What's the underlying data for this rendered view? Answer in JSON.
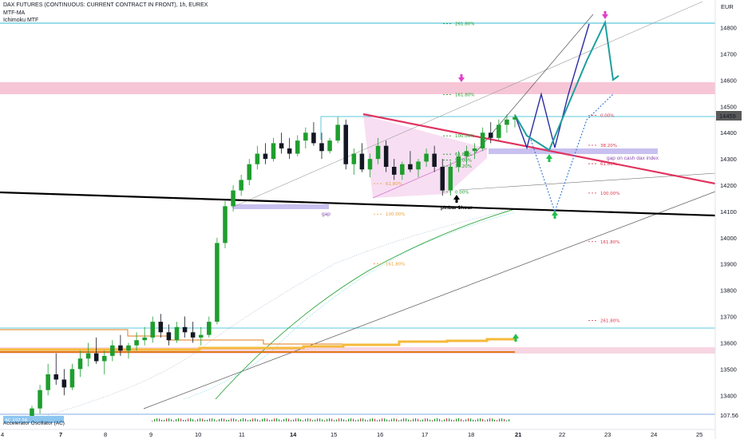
{
  "header": {
    "title": "DAX FUTURES (CONTINUOUS: CURRENT CONTRACT IN FRONT), 1h, EUREX",
    "indicator1": "MTF-MA",
    "indicator2": "Ichimoku MTF"
  },
  "chart_data": {
    "type": "candlestick",
    "currency": "EUR",
    "current_price": "14459",
    "ylim": [
      13340,
      14890
    ],
    "y_ticks": [
      "14800",
      "14700",
      "14600",
      "14500",
      "14400",
      "14300",
      "14200",
      "14100",
      "14000",
      "13900",
      "13800",
      "13700",
      "13600",
      "13500",
      "13400"
    ],
    "x_ticks": [
      "4",
      "7",
      "8",
      "9",
      "10",
      "11",
      "14",
      "15",
      "16",
      "17",
      "18",
      "21",
      "22",
      "23",
      "24",
      "25"
    ],
    "candles": [
      {
        "o": 13320,
        "h": 13360,
        "l": 13300,
        "c": 13350
      },
      {
        "o": 13350,
        "h": 13440,
        "l": 13330,
        "c": 13420
      },
      {
        "o": 13420,
        "h": 13520,
        "l": 13400,
        "c": 13480
      },
      {
        "o": 13480,
        "h": 13560,
        "l": 13440,
        "c": 13460
      },
      {
        "o": 13460,
        "h": 13500,
        "l": 13400,
        "c": 13430
      },
      {
        "o": 13430,
        "h": 13520,
        "l": 13420,
        "c": 13500
      },
      {
        "o": 13500,
        "h": 13570,
        "l": 13470,
        "c": 13540
      },
      {
        "o": 13540,
        "h": 13600,
        "l": 13510,
        "c": 13560
      },
      {
        "o": 13560,
        "h": 13620,
        "l": 13520,
        "c": 13530
      },
      {
        "o": 13530,
        "h": 13570,
        "l": 13480,
        "c": 13550
      },
      {
        "o": 13550,
        "h": 13610,
        "l": 13530,
        "c": 13590
      },
      {
        "o": 13590,
        "h": 13630,
        "l": 13550,
        "c": 13570
      },
      {
        "o": 13570,
        "h": 13600,
        "l": 13540,
        "c": 13590
      },
      {
        "o": 13590,
        "h": 13640,
        "l": 13570,
        "c": 13610
      },
      {
        "o": 13610,
        "h": 13660,
        "l": 13590,
        "c": 13620
      },
      {
        "o": 13620,
        "h": 13700,
        "l": 13600,
        "c": 13680
      },
      {
        "o": 13680,
        "h": 13710,
        "l": 13620,
        "c": 13640
      },
      {
        "o": 13640,
        "h": 13670,
        "l": 13590,
        "c": 13610
      },
      {
        "o": 13610,
        "h": 13680,
        "l": 13600,
        "c": 13660
      },
      {
        "o": 13660,
        "h": 13700,
        "l": 13620,
        "c": 13640
      },
      {
        "o": 13640,
        "h": 13680,
        "l": 13600,
        "c": 13620
      },
      {
        "o": 13620,
        "h": 13660,
        "l": 13590,
        "c": 13630
      },
      {
        "o": 13630,
        "h": 13700,
        "l": 13620,
        "c": 13680
      },
      {
        "o": 13680,
        "h": 14000,
        "l": 13670,
        "c": 13980
      },
      {
        "o": 13980,
        "h": 14140,
        "l": 13960,
        "c": 14120
      },
      {
        "o": 14120,
        "h": 14200,
        "l": 14100,
        "c": 14180
      },
      {
        "o": 14180,
        "h": 14240,
        "l": 14160,
        "c": 14220
      },
      {
        "o": 14220,
        "h": 14300,
        "l": 14200,
        "c": 14280
      },
      {
        "o": 14280,
        "h": 14350,
        "l": 14260,
        "c": 14320
      },
      {
        "o": 14320,
        "h": 14360,
        "l": 14280,
        "c": 14300
      },
      {
        "o": 14300,
        "h": 14380,
        "l": 14290,
        "c": 14360
      },
      {
        "o": 14360,
        "h": 14400,
        "l": 14320,
        "c": 14340
      },
      {
        "o": 14340,
        "h": 14380,
        "l": 14300,
        "c": 14320
      },
      {
        "o": 14320,
        "h": 14390,
        "l": 14310,
        "c": 14370
      },
      {
        "o": 14370,
        "h": 14420,
        "l": 14340,
        "c": 14400
      },
      {
        "o": 14400,
        "h": 14440,
        "l": 14350,
        "c": 14360
      },
      {
        "o": 14360,
        "h": 14400,
        "l": 14300,
        "c": 14330
      },
      {
        "o": 14330,
        "h": 14380,
        "l": 14320,
        "c": 14370
      },
      {
        "o": 14370,
        "h": 14460,
        "l": 14360,
        "c": 14430
      },
      {
        "o": 14430,
        "h": 14450,
        "l": 14260,
        "c": 14280
      },
      {
        "o": 14280,
        "h": 14340,
        "l": 14240,
        "c": 14320
      },
      {
        "o": 14320,
        "h": 14360,
        "l": 14250,
        "c": 14260
      },
      {
        "o": 14260,
        "h": 14320,
        "l": 14230,
        "c": 14300
      },
      {
        "o": 14300,
        "h": 14380,
        "l": 14280,
        "c": 14350
      },
      {
        "o": 14350,
        "h": 14370,
        "l": 14250,
        "c": 14270
      },
      {
        "o": 14270,
        "h": 14300,
        "l": 14220,
        "c": 14240
      },
      {
        "o": 14240,
        "h": 14290,
        "l": 14220,
        "c": 14280
      },
      {
        "o": 14280,
        "h": 14330,
        "l": 14250,
        "c": 14260
      },
      {
        "o": 14260,
        "h": 14300,
        "l": 14230,
        "c": 14290
      },
      {
        "o": 14290,
        "h": 14340,
        "l": 14270,
        "c": 14320
      },
      {
        "o": 14320,
        "h": 14350,
        "l": 14250,
        "c": 14270
      },
      {
        "o": 14270,
        "h": 14300,
        "l": 14160,
        "c": 14180
      },
      {
        "o": 14180,
        "h": 14290,
        "l": 14160,
        "c": 14270
      },
      {
        "o": 14270,
        "h": 14330,
        "l": 14250,
        "c": 14310
      },
      {
        "o": 14310,
        "h": 14350,
        "l": 14280,
        "c": 14330
      },
      {
        "o": 14330,
        "h": 14360,
        "l": 14300,
        "c": 14340
      },
      {
        "o": 14340,
        "h": 14420,
        "l": 14330,
        "c": 14400
      },
      {
        "o": 14400,
        "h": 14440,
        "l": 14360,
        "c": 14380
      },
      {
        "o": 14380,
        "h": 14450,
        "l": 14370,
        "c": 14430
      },
      {
        "o": 14430,
        "h": 14470,
        "l": 14400,
        "c": 14450
      },
      {
        "o": 14450,
        "h": 14470,
        "l": 14420,
        "c": 14459
      }
    ],
    "levels": [
      {
        "label": "261.80%",
        "color": "#1e9e2e",
        "y": 14815
      },
      {
        "label": "161.80%",
        "color": "#1e9e2e",
        "y": 14545
      },
      {
        "label": "100.00%",
        "color": "#1e9e2e",
        "y": 14388
      },
      {
        "label": "61.80%",
        "color": "#1e9e2e",
        "y": 14318
      },
      {
        "label": "50.00%",
        "color": "#1e9e2e",
        "y": 14296
      },
      {
        "label": "38.20%",
        "color": "#1e9e2e",
        "y": 14273
      },
      {
        "label": "0.00%",
        "color": "#1e9e2e",
        "y": 14175
      },
      {
        "label": "61.80%",
        "color": "#e9a13b",
        "y": 14206
      },
      {
        "label": "100.00%",
        "color": "#e9a13b",
        "y": 14090
      },
      {
        "label": "161.80%",
        "color": "#e9a13b",
        "y": 13901
      },
      {
        "label": "0.00%",
        "color": "#e0334c",
        "y": 14466
      },
      {
        "label": "38.20%",
        "color": "#e0334c",
        "y": 14352
      },
      {
        "label": "61.80%",
        "color": "#e0334c",
        "y": 14282
      },
      {
        "label": "100.00%",
        "color": "#e0334c",
        "y": 14170
      },
      {
        "label": "161.80%",
        "color": "#e0334c",
        "y": 13985
      },
      {
        "label": "261.80%",
        "color": "#e0334c",
        "y": 13685
      }
    ],
    "annotations": {
      "gap": "gap",
      "gap_cash": "gap on cash dax index",
      "pinbar": "pinbar 1hour"
    },
    "oscillator": {
      "name": "Accelerator Oscillator (AC)",
      "value_label": "107.56"
    },
    "colors": {
      "up": "#1e9e2e",
      "down": "#131722",
      "trend": "#e0335f",
      "projection": "#1e9e9e",
      "pink_zone": "#f7c6d6",
      "purple_zone": "#c8c0ef",
      "cyan": "#5bc8dc"
    }
  }
}
